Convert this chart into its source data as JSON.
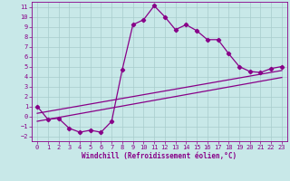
{
  "xlabel": "Windchill (Refroidissement éolien,°C)",
  "bg_color": "#c8e8e8",
  "line_color": "#880088",
  "grid_color": "#a8cccc",
  "xlim": [
    -0.5,
    23.5
  ],
  "ylim": [
    -2.5,
    11.5
  ],
  "xticks": [
    0,
    1,
    2,
    3,
    4,
    5,
    6,
    7,
    8,
    9,
    10,
    11,
    12,
    13,
    14,
    15,
    16,
    17,
    18,
    19,
    20,
    21,
    22,
    23
  ],
  "yticks": [
    -2,
    -1,
    0,
    1,
    2,
    3,
    4,
    5,
    6,
    7,
    8,
    9,
    10,
    11
  ],
  "main_x": [
    0,
    1,
    2,
    3,
    4,
    5,
    6,
    7,
    8,
    9,
    10,
    11,
    12,
    13,
    14,
    15,
    16,
    17,
    18,
    19,
    20,
    21,
    22,
    23
  ],
  "main_y": [
    1.0,
    -0.3,
    -0.2,
    -1.2,
    -1.6,
    -1.4,
    -1.6,
    -0.5,
    4.7,
    9.2,
    9.7,
    11.1,
    10.0,
    8.7,
    9.2,
    8.6,
    7.7,
    7.7,
    6.3,
    5.0,
    4.5,
    4.4,
    4.8,
    5.0
  ],
  "line1_x": [
    0,
    23
  ],
  "line1_y": [
    0.3,
    4.6
  ],
  "line2_x": [
    0,
    23
  ],
  "line2_y": [
    -0.5,
    3.9
  ],
  "marker": "D",
  "marker_size": 2.2,
  "line_width": 0.9,
  "tick_fontsize": 5.0,
  "xlabel_fontsize": 5.5
}
